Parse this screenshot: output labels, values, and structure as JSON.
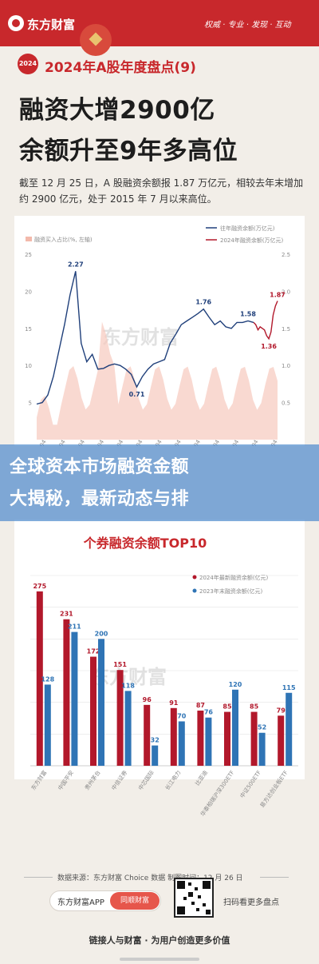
{
  "header": {
    "brand": "东方财富",
    "slogan": "权威 · 专业 · 发现 · 互动"
  },
  "title": {
    "badge": "2024",
    "subtitle": "2024年A股年度盘点(9)",
    "headline_line1": "融资大增2900亿",
    "headline_line2": "余额升至9年多高位",
    "description": "截至 12 月 25 日，A 股融资余额报 1.87 万亿元，相较去年末增加约 2900 亿元，处于 2015 年 7 月以来高位。"
  },
  "overlay": {
    "line1": "全球资本市场融资金额",
    "line2": "大揭秘，最新动态与排"
  },
  "chart_data": [
    {
      "type": "line",
      "title": "",
      "legend": [
        "往年融资余额(万亿元)",
        "2024年融资余额(万亿元)",
        "融资买入占比(%, 左轴)"
      ],
      "legend_position": "top",
      "left_axis": {
        "ticks": [
          "25",
          "20",
          "15",
          "10",
          "5"
        ],
        "ylim": [
          0,
          25
        ]
      },
      "right_axis": {
        "ticks": [
          "2.5",
          "2.0",
          "1.5",
          "1.0",
          "0.5"
        ],
        "ylim": [
          0,
          2.5
        ]
      },
      "x_tick_labels": [
        "2012-01-04",
        "2013-01-04",
        "2014-01-04",
        "2015-01-04",
        "2016-01-04",
        "2017-01-04",
        "2018-01-04",
        "2019-01-04",
        "2020-01-04",
        "2021-01-04",
        "2022-01-04",
        "2023-01-04",
        "2024-01-04"
      ],
      "series": [
        {
          "name": "往年融资余额(万亿元)",
          "color": "#1f3f7a",
          "values": [
            0.48,
            0.5,
            0.6,
            0.85,
            1.2,
            1.55,
            1.95,
            2.27,
            1.3,
            1.05,
            1.15,
            0.95,
            0.96,
            1.0,
            1.02,
            1.0,
            0.95,
            0.88,
            0.71,
            0.85,
            0.95,
            1.02,
            1.05,
            1.08,
            1.3,
            1.42,
            1.55,
            1.6,
            1.65,
            1.7,
            1.76,
            1.65,
            1.55,
            1.6,
            1.52,
            1.5,
            1.58,
            1.58,
            1.6,
            1.58
          ]
        },
        {
          "name": "2024年融资余额(万亿元)",
          "color": "#b2182b",
          "values": [
            1.58,
            1.55,
            1.48,
            1.52,
            1.5,
            1.48,
            1.4,
            1.36,
            1.45,
            1.68,
            1.8,
            1.87
          ]
        }
      ],
      "annotations": [
        "2.27",
        "0.71",
        "1.76",
        "1.58",
        "1.36",
        "1.87"
      ]
    },
    {
      "type": "bar",
      "title": "个券融资余额TOP10",
      "categories": [
        "东方财富",
        "中国平安",
        "贵州茅台",
        "中信证券",
        "中芯国际",
        "长江电力",
        "比亚迪",
        "华泰柏瑞沪深300ETF",
        "中证500ETF",
        "易方达创业板ETF"
      ],
      "series": [
        {
          "name": "2024年最新融资余额(亿元)",
          "color": "#b2182b",
          "values": [
            275,
            231,
            172,
            151,
            96,
            91,
            87,
            85,
            85,
            79
          ]
        },
        {
          "name": "2023年末融资余额(亿元)",
          "color": "#2f74b5",
          "values": [
            128,
            211,
            200,
            118,
            32,
            70,
            76,
            120,
            52,
            115
          ]
        }
      ],
      "ylim": [
        0,
        300
      ],
      "legend_position": "top-right"
    }
  ],
  "source": "数据来源：东方财富 Choice 数据    制图时间：12 月 26 日",
  "footer": {
    "app_name": "东方财富APP",
    "open_button": "同顺财富",
    "qr_text": "扫码看更多盘点",
    "bottom_slogan": "链接人与财富 · 为用户创造更多价值"
  },
  "watermark": "东方财富"
}
